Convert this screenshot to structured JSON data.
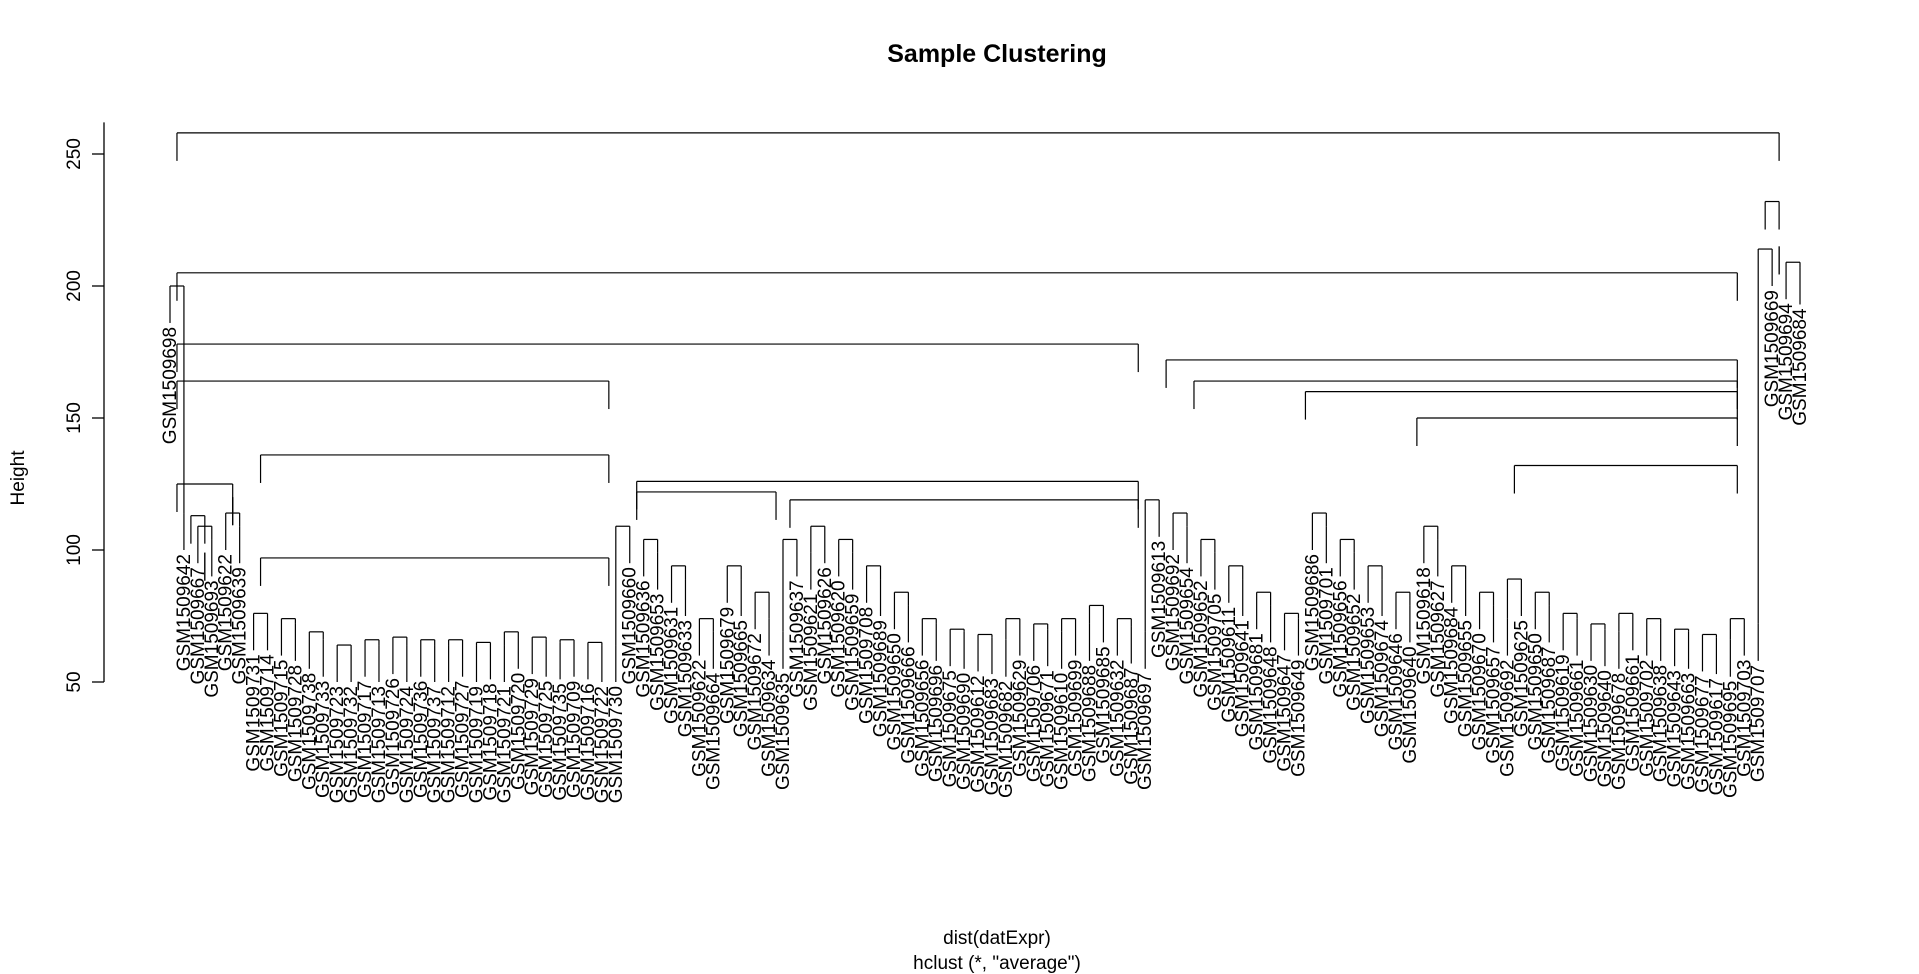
{
  "chart_data": {
    "type": "dendrogram",
    "title": "Sample Clustering",
    "xlabel": "dist(datExpr)",
    "sub": "hclust (*, \"average\")",
    "ylabel": "Height",
    "yticks": [
      50,
      100,
      150,
      200,
      250
    ],
    "ylim": [
      50,
      258
    ],
    "top_merge_height": 258,
    "leaves": [
      {
        "label": "GSM1509698",
        "height": 186
      },
      {
        "label": "GSM1509642",
        "height": 100
      },
      {
        "label": "GSM1509667",
        "height": 95
      },
      {
        "label": "GSM1509693",
        "height": 90
      },
      {
        "label": "GSM1509622",
        "height": 100
      },
      {
        "label": "GSM1509639",
        "height": 95
      },
      {
        "label": "GSM1509731",
        "height": 62
      },
      {
        "label": "GSM1509714",
        "height": 62
      },
      {
        "label": "GSM1509715",
        "height": 60
      },
      {
        "label": "GSM1509728",
        "height": 58
      },
      {
        "label": "GSM1509738",
        "height": 55
      },
      {
        "label": "GSM1509733",
        "height": 52
      },
      {
        "label": "GSM1509723",
        "height": 50
      },
      {
        "label": "GSM1509732",
        "height": 50
      },
      {
        "label": "GSM1509717",
        "height": 52
      },
      {
        "label": "GSM1509713",
        "height": 50
      },
      {
        "label": "GSM1509726",
        "height": 53
      },
      {
        "label": "GSM1509724",
        "height": 50
      },
      {
        "label": "GSM1509736",
        "height": 52
      },
      {
        "label": "GSM1509737",
        "height": 50
      },
      {
        "label": "GSM1509712",
        "height": 50
      },
      {
        "label": "GSM1509727",
        "height": 52
      },
      {
        "label": "GSM1509719",
        "height": 50
      },
      {
        "label": "GSM1509718",
        "height": 51
      },
      {
        "label": "GSM1509721",
        "height": 50
      },
      {
        "label": "GSM1509720",
        "height": 55
      },
      {
        "label": "GSM1509729",
        "height": 53
      },
      {
        "label": "GSM1509725",
        "height": 52
      },
      {
        "label": "GSM1509735",
        "height": 51
      },
      {
        "label": "GSM1509709",
        "height": 52
      },
      {
        "label": "GSM1509716",
        "height": 51
      },
      {
        "label": "GSM1509722",
        "height": 50
      },
      {
        "label": "GSM1509730",
        "height": 50
      },
      {
        "label": "GSM1509660",
        "height": 95
      },
      {
        "label": "GSM1509636",
        "height": 90
      },
      {
        "label": "GSM1509653",
        "height": 85
      },
      {
        "label": "GSM1509631",
        "height": 80
      },
      {
        "label": "GSM1509633",
        "height": 75
      },
      {
        "label": "GSM1509622",
        "height": 60
      },
      {
        "label": "GSM1509664",
        "height": 55
      },
      {
        "label": "GSM1509679",
        "height": 80
      },
      {
        "label": "GSM1509665",
        "height": 75
      },
      {
        "label": "GSM1509672",
        "height": 70
      },
      {
        "label": "GSM1509634",
        "height": 60
      },
      {
        "label": "GSM1509635",
        "height": 55
      },
      {
        "label": "GSM1509637",
        "height": 90
      },
      {
        "label": "GSM1509621",
        "height": 85
      },
      {
        "label": "GSM1509626",
        "height": 95
      },
      {
        "label": "GSM1509620",
        "height": 90
      },
      {
        "label": "GSM1509659",
        "height": 85
      },
      {
        "label": "GSM1509708",
        "height": 80
      },
      {
        "label": "GSM1509689",
        "height": 75
      },
      {
        "label": "GSM1509650",
        "height": 70
      },
      {
        "label": "GSM1509666",
        "height": 65
      },
      {
        "label": "GSM1509656",
        "height": 60
      },
      {
        "label": "GSM1509696",
        "height": 58
      },
      {
        "label": "GSM1509675",
        "height": 56
      },
      {
        "label": "GSM1509690",
        "height": 55
      },
      {
        "label": "GSM1509612",
        "height": 54
      },
      {
        "label": "GSM1509683",
        "height": 53
      },
      {
        "label": "GSM1509682",
        "height": 52
      },
      {
        "label": "GSM1509629",
        "height": 60
      },
      {
        "label": "GSM1509706",
        "height": 58
      },
      {
        "label": "GSM1509671",
        "height": 56
      },
      {
        "label": "GSM1509610",
        "height": 55
      },
      {
        "label": "GSM1509699",
        "height": 60
      },
      {
        "label": "GSM1509688",
        "height": 58
      },
      {
        "label": "GSM1509685",
        "height": 65
      },
      {
        "label": "GSM1509632",
        "height": 60
      },
      {
        "label": "GSM1509687",
        "height": 57
      },
      {
        "label": "GSM1509697",
        "height": 55
      },
      {
        "label": "GSM1509613",
        "height": 105
      },
      {
        "label": "GSM1509692",
        "height": 100
      },
      {
        "label": "GSM1509654",
        "height": 95
      },
      {
        "label": "GSM1509652",
        "height": 90
      },
      {
        "label": "GSM1509705",
        "height": 85
      },
      {
        "label": "GSM1509611",
        "height": 80
      },
      {
        "label": "GSM1509641",
        "height": 75
      },
      {
        "label": "GSM1509681",
        "height": 70
      },
      {
        "label": "GSM1509648",
        "height": 65
      },
      {
        "label": "GSM1509647",
        "height": 62
      },
      {
        "label": "GSM1509649",
        "height": 60
      },
      {
        "label": "GSM1509686",
        "height": 100
      },
      {
        "label": "GSM1509701",
        "height": 95
      },
      {
        "label": "GSM1509656",
        "height": 90
      },
      {
        "label": "GSM1509652",
        "height": 85
      },
      {
        "label": "GSM1509653",
        "height": 80
      },
      {
        "label": "GSM1509674",
        "height": 75
      },
      {
        "label": "GSM1509646",
        "height": 70
      },
      {
        "label": "GSM1509640",
        "height": 65
      },
      {
        "label": "GSM1509618",
        "height": 95
      },
      {
        "label": "GSM1509627",
        "height": 90
      },
      {
        "label": "GSM1509684",
        "height": 80
      },
      {
        "label": "GSM1509655",
        "height": 75
      },
      {
        "label": "GSM1509670",
        "height": 70
      },
      {
        "label": "GSM1509657",
        "height": 65
      },
      {
        "label": "GSM1509692",
        "height": 60
      },
      {
        "label": "GSM1509625",
        "height": 75
      },
      {
        "label": "GSM1509650",
        "height": 70
      },
      {
        "label": "GSM1509687",
        "height": 65
      },
      {
        "label": "GSM1509619",
        "height": 62
      },
      {
        "label": "GSM1509661",
        "height": 60
      },
      {
        "label": "GSM1509630",
        "height": 58
      },
      {
        "label": "GSM1509640",
        "height": 56
      },
      {
        "label": "GSM1509678",
        "height": 55
      },
      {
        "label": "GSM1509661",
        "height": 62
      },
      {
        "label": "GSM1509702",
        "height": 60
      },
      {
        "label": "GSM1509638",
        "height": 58
      },
      {
        "label": "GSM1509643",
        "height": 56
      },
      {
        "label": "GSM1509663",
        "height": 55
      },
      {
        "label": "GSM1509677",
        "height": 54
      },
      {
        "label": "GSM1509617",
        "height": 53
      },
      {
        "label": "GSM1509695",
        "height": 52
      },
      {
        "label": "GSM1509703",
        "height": 60
      },
      {
        "label": "GSM1509707",
        "height": 58
      },
      {
        "label": "GSM1509669",
        "height": 200
      },
      {
        "label": "GSM1509694",
        "height": 195
      },
      {
        "label": "GSM1509684",
        "height": 193
      }
    ],
    "merges": [
      {
        "from": 0,
        "to": 5,
        "height": 125
      },
      {
        "from": 1,
        "to": 3,
        "height": 113
      },
      {
        "from": 2,
        "to": 3,
        "height": 99
      },
      {
        "from": 4,
        "to": 5,
        "height": 120
      },
      {
        "from": 0,
        "to": 32,
        "height": 164
      },
      {
        "from": 6,
        "to": 32,
        "height": 136
      },
      {
        "from": 6,
        "to": 32,
        "height": 97
      },
      {
        "from": 33,
        "to": 70,
        "height": 126
      },
      {
        "from": 33,
        "to": 44,
        "height": 122
      },
      {
        "from": 44,
        "to": 70,
        "height": 119
      },
      {
        "from": 0,
        "to": 70,
        "height": 178
      },
      {
        "from": 71,
        "to": 113,
        "height": 172
      },
      {
        "from": 73,
        "to": 113,
        "height": 164
      },
      {
        "from": 81,
        "to": 113,
        "height": 160
      },
      {
        "from": 89,
        "to": 113,
        "height": 150
      },
      {
        "from": 96,
        "to": 113,
        "height": 132
      },
      {
        "from": 0,
        "to": 113,
        "height": 205
      },
      {
        "from": 114,
        "to": 116,
        "height": 232
      },
      {
        "from": 115,
        "to": 116,
        "height": 215
      },
      {
        "from": 0,
        "to": 116,
        "height": 258
      }
    ]
  }
}
